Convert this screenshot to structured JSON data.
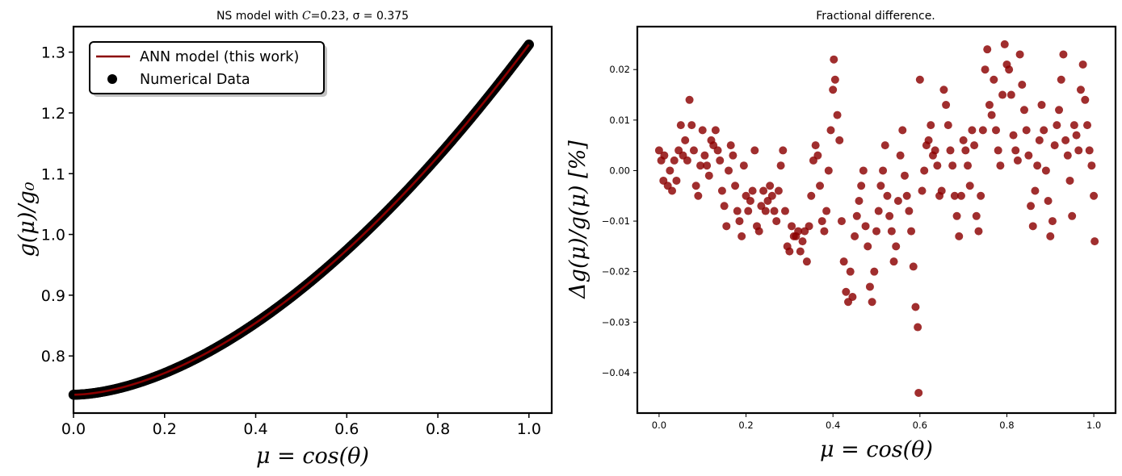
{
  "chart_data": [
    {
      "type": "line",
      "title": "NS model with C=0.23, σ = 0.375",
      "title_parts": {
        "prefix": "NS model with ",
        "c_symbol": "C",
        "rest": "=0.23, σ = 0.375"
      },
      "xlabel": "μ = cos(θ)",
      "ylabel": "g(μ)/g₀",
      "xlim": [
        0.0,
        1.05
      ],
      "ylim": [
        0.706,
        1.342
      ],
      "xticks": [
        "0.0",
        "0.2",
        "0.4",
        "0.6",
        "0.8",
        "1.0"
      ],
      "xtick_values": [
        0.0,
        0.2,
        0.4,
        0.6,
        0.8,
        1.0
      ],
      "yticks": [
        "0.8",
        "0.9",
        "1.0",
        "1.1",
        "1.2",
        "1.3"
      ],
      "ytick_values": [
        0.8,
        0.9,
        1.0,
        1.1,
        1.2,
        1.3
      ],
      "grid": false,
      "legend_position": "upper-left",
      "series": [
        {
          "name": "ANN model (this work)",
          "kind": "line",
          "color": "#8b0000"
        },
        {
          "name": "Numerical Data",
          "kind": "scatter",
          "color": "#000000"
        }
      ],
      "curve_model": {
        "x0": 0.0,
        "x1": 1.0,
        "y0": 0.7362,
        "y1": 1.3125,
        "shape_exponent": 1.73
      },
      "x_samples": [
        0.0,
        0.05,
        0.1,
        0.15,
        0.2,
        0.25,
        0.3,
        0.35,
        0.4,
        0.45,
        0.5,
        0.55,
        0.6,
        0.65,
        0.7,
        0.75,
        0.8,
        0.85,
        0.9,
        0.95,
        1.0
      ],
      "y_samples": [
        0.736,
        0.741,
        0.747,
        0.759,
        0.775,
        0.794,
        0.816,
        0.84,
        0.866,
        0.895,
        0.926,
        0.959,
        0.993,
        1.029,
        1.066,
        1.105,
        1.145,
        1.186,
        1.228,
        1.27,
        1.313
      ]
    },
    {
      "type": "scatter",
      "title": "Fractional difference.",
      "xlabel": "μ = cos(θ)",
      "ylabel": "Δg(μ)/g(μ) [%]",
      "xlim": [
        -0.05,
        1.05
      ],
      "ylim": [
        -0.048,
        0.0285
      ],
      "xticks": [
        "0.0",
        "0.2",
        "0.4",
        "0.6",
        "0.8",
        "1.0"
      ],
      "xtick_values": [
        0.0,
        0.2,
        0.4,
        0.6,
        0.8,
        1.0
      ],
      "yticks": [
        "0.02",
        "0.01",
        "0.00",
        "−0.01",
        "−0.02",
        "−0.03",
        "−0.04"
      ],
      "ytick_values": [
        0.02,
        0.01,
        0.0,
        -0.01,
        -0.02,
        -0.03,
        -0.04
      ],
      "grid": false,
      "marker_color": "#8b0000",
      "series": [
        {
          "name": "",
          "points": [
            [
              0.0,
              0.004
            ],
            [
              0.005,
              0.002
            ],
            [
              0.01,
              -0.002
            ],
            [
              0.012,
              0.003
            ],
            [
              0.02,
              -0.003
            ],
            [
              0.025,
              0.0
            ],
            [
              0.03,
              -0.004
            ],
            [
              0.035,
              0.002
            ],
            [
              0.04,
              -0.002
            ],
            [
              0.045,
              0.004
            ],
            [
              0.05,
              0.009
            ],
            [
              0.055,
              0.003
            ],
            [
              0.06,
              0.006
            ],
            [
              0.065,
              0.002
            ],
            [
              0.07,
              0.014
            ],
            [
              0.075,
              0.009
            ],
            [
              0.08,
              0.004
            ],
            [
              0.085,
              -0.003
            ],
            [
              0.09,
              -0.005
            ],
            [
              0.095,
              0.001
            ],
            [
              0.1,
              0.008
            ],
            [
              0.105,
              0.003
            ],
            [
              0.11,
              0.001
            ],
            [
              0.115,
              -0.001
            ],
            [
              0.12,
              0.006
            ],
            [
              0.125,
              0.005
            ],
            [
              0.13,
              0.008
            ],
            [
              0.135,
              0.004
            ],
            [
              0.14,
              0.002
            ],
            [
              0.145,
              -0.004
            ],
            [
              0.15,
              -0.007
            ],
            [
              0.155,
              -0.011
            ],
            [
              0.16,
              0.0
            ],
            [
              0.165,
              0.005
            ],
            [
              0.17,
              0.003
            ],
            [
              0.175,
              -0.003
            ],
            [
              0.18,
              -0.008
            ],
            [
              0.185,
              -0.01
            ],
            [
              0.19,
              -0.013
            ],
            [
              0.195,
              0.001
            ],
            [
              0.2,
              -0.005
            ],
            [
              0.205,
              -0.008
            ],
            [
              0.21,
              -0.006
            ],
            [
              0.215,
              -0.004
            ],
            [
              0.22,
              0.004
            ],
            [
              0.225,
              -0.011
            ],
            [
              0.23,
              -0.012
            ],
            [
              0.235,
              -0.007
            ],
            [
              0.24,
              -0.004
            ],
            [
              0.245,
              -0.008
            ],
            [
              0.25,
              -0.006
            ],
            [
              0.255,
              -0.003
            ],
            [
              0.26,
              -0.005
            ],
            [
              0.265,
              -0.008
            ],
            [
              0.27,
              -0.01
            ],
            [
              0.275,
              -0.004
            ],
            [
              0.28,
              0.001
            ],
            [
              0.285,
              0.004
            ],
            [
              0.29,
              -0.008
            ],
            [
              0.295,
              -0.015
            ],
            [
              0.3,
              -0.016
            ],
            [
              0.305,
              -0.011
            ],
            [
              0.31,
              -0.013
            ],
            [
              0.315,
              -0.013
            ],
            [
              0.32,
              -0.012
            ],
            [
              0.325,
              -0.016
            ],
            [
              0.33,
              -0.014
            ],
            [
              0.335,
              -0.012
            ],
            [
              0.34,
              -0.018
            ],
            [
              0.345,
              -0.011
            ],
            [
              0.35,
              -0.005
            ],
            [
              0.355,
              0.002
            ],
            [
              0.36,
              0.005
            ],
            [
              0.365,
              0.003
            ],
            [
              0.37,
              -0.003
            ],
            [
              0.375,
              -0.01
            ],
            [
              0.38,
              -0.012
            ],
            [
              0.385,
              -0.008
            ],
            [
              0.39,
              0.0
            ],
            [
              0.395,
              0.008
            ],
            [
              0.4,
              0.016
            ],
            [
              0.402,
              0.022
            ],
            [
              0.405,
              0.018
            ],
            [
              0.41,
              0.011
            ],
            [
              0.415,
              0.006
            ],
            [
              0.42,
              -0.01
            ],
            [
              0.425,
              -0.018
            ],
            [
              0.43,
              -0.024
            ],
            [
              0.435,
              -0.026
            ],
            [
              0.44,
              -0.02
            ],
            [
              0.445,
              -0.025
            ],
            [
              0.45,
              -0.013
            ],
            [
              0.455,
              -0.009
            ],
            [
              0.46,
              -0.006
            ],
            [
              0.465,
              -0.003
            ],
            [
              0.47,
              0.0
            ],
            [
              0.475,
              -0.011
            ],
            [
              0.48,
              -0.015
            ],
            [
              0.485,
              -0.023
            ],
            [
              0.49,
              -0.026
            ],
            [
              0.495,
              -0.02
            ],
            [
              0.5,
              -0.012
            ],
            [
              0.505,
              -0.008
            ],
            [
              0.51,
              -0.003
            ],
            [
              0.515,
              0.0
            ],
            [
              0.52,
              0.005
            ],
            [
              0.525,
              -0.005
            ],
            [
              0.53,
              -0.009
            ],
            [
              0.535,
              -0.012
            ],
            [
              0.54,
              -0.018
            ],
            [
              0.545,
              -0.015
            ],
            [
              0.55,
              -0.006
            ],
            [
              0.555,
              0.003
            ],
            [
              0.56,
              0.008
            ],
            [
              0.565,
              -0.001
            ],
            [
              0.57,
              -0.005
            ],
            [
              0.575,
              -0.008
            ],
            [
              0.58,
              -0.012
            ],
            [
              0.585,
              -0.019
            ],
            [
              0.59,
              -0.027
            ],
            [
              0.595,
              -0.031
            ],
            [
              0.597,
              -0.044
            ],
            [
              0.6,
              0.018
            ],
            [
              0.605,
              -0.004
            ],
            [
              0.61,
              0.0
            ],
            [
              0.615,
              0.005
            ],
            [
              0.62,
              0.006
            ],
            [
              0.625,
              0.009
            ],
            [
              0.63,
              0.003
            ],
            [
              0.635,
              0.004
            ],
            [
              0.64,
              0.001
            ],
            [
              0.645,
              -0.005
            ],
            [
              0.65,
              -0.004
            ],
            [
              0.655,
              0.016
            ],
            [
              0.66,
              0.013
            ],
            [
              0.665,
              0.009
            ],
            [
              0.67,
              0.004
            ],
            [
              0.675,
              0.001
            ],
            [
              0.68,
              -0.005
            ],
            [
              0.685,
              -0.009
            ],
            [
              0.69,
              -0.013
            ],
            [
              0.695,
              -0.005
            ],
            [
              0.7,
              0.006
            ],
            [
              0.705,
              0.004
            ],
            [
              0.71,
              0.001
            ],
            [
              0.715,
              -0.003
            ],
            [
              0.72,
              0.008
            ],
            [
              0.725,
              0.005
            ],
            [
              0.73,
              -0.009
            ],
            [
              0.735,
              -0.012
            ],
            [
              0.74,
              -0.005
            ],
            [
              0.745,
              0.008
            ],
            [
              0.75,
              0.02
            ],
            [
              0.755,
              0.024
            ],
            [
              0.76,
              0.013
            ],
            [
              0.765,
              0.011
            ],
            [
              0.77,
              0.018
            ],
            [
              0.775,
              0.008
            ],
            [
              0.78,
              0.004
            ],
            [
              0.785,
              0.001
            ],
            [
              0.79,
              0.015
            ],
            [
              0.795,
              0.025
            ],
            [
              0.8,
              0.021
            ],
            [
              0.805,
              0.02
            ],
            [
              0.81,
              0.015
            ],
            [
              0.815,
              0.007
            ],
            [
              0.82,
              0.004
            ],
            [
              0.825,
              0.002
            ],
            [
              0.83,
              0.023
            ],
            [
              0.835,
              0.017
            ],
            [
              0.84,
              0.012
            ],
            [
              0.845,
              0.008
            ],
            [
              0.85,
              0.003
            ],
            [
              0.855,
              -0.007
            ],
            [
              0.86,
              -0.011
            ],
            [
              0.865,
              -0.004
            ],
            [
              0.87,
              0.001
            ],
            [
              0.875,
              0.006
            ],
            [
              0.88,
              0.013
            ],
            [
              0.885,
              0.008
            ],
            [
              0.89,
              0.0
            ],
            [
              0.895,
              -0.006
            ],
            [
              0.9,
              -0.013
            ],
            [
              0.905,
              -0.01
            ],
            [
              0.91,
              0.005
            ],
            [
              0.915,
              0.009
            ],
            [
              0.92,
              0.012
            ],
            [
              0.925,
              0.018
            ],
            [
              0.93,
              0.023
            ],
            [
              0.935,
              0.006
            ],
            [
              0.94,
              0.003
            ],
            [
              0.945,
              -0.002
            ],
            [
              0.95,
              -0.009
            ],
            [
              0.955,
              0.009
            ],
            [
              0.96,
              0.007
            ],
            [
              0.965,
              0.004
            ],
            [
              0.97,
              0.016
            ],
            [
              0.975,
              0.021
            ],
            [
              0.98,
              0.014
            ],
            [
              0.985,
              0.009
            ],
            [
              0.99,
              0.004
            ],
            [
              0.995,
              0.001
            ],
            [
              1.0,
              -0.005
            ],
            [
              1.002,
              -0.014
            ]
          ]
        }
      ]
    }
  ]
}
